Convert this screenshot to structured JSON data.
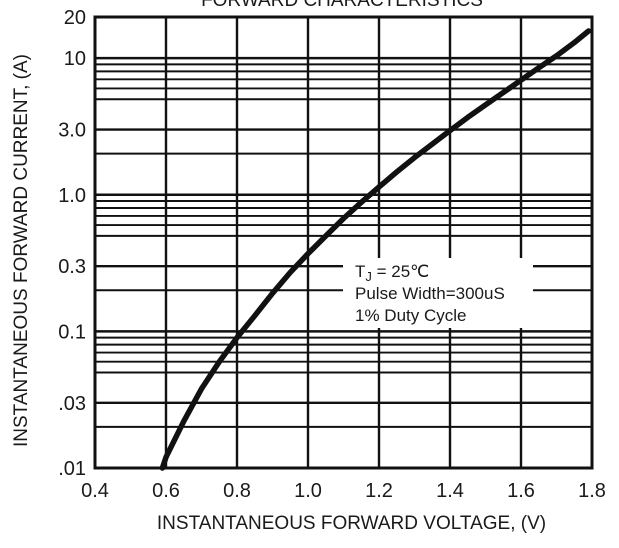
{
  "chart_data": {
    "type": "line",
    "title": "FORWARD CHARACTERISTICS",
    "xlabel": "INSTANTANEOUS FORWARD VOLTAGE, (V)",
    "ylabel": "INSTANTANEOUS FORWARD CURRENT, (A)",
    "xlim": [
      0.4,
      1.8
    ],
    "ylim": [
      0.01,
      20
    ],
    "yscale": "log",
    "grid": true,
    "x_ticks": [
      0.4,
      0.6,
      0.8,
      1.0,
      1.2,
      1.4,
      1.6,
      1.8
    ],
    "x_tick_labels": [
      "0.4",
      "0.6",
      "0.8",
      "1.0",
      "1.2",
      "1.4",
      "1.6",
      "1.8"
    ],
    "y_ticks": [
      0.01,
      0.03,
      0.1,
      0.3,
      1.0,
      3.0,
      10,
      20
    ],
    "y_tick_labels": [
      ".01",
      ".03",
      "0.1",
      "0.3",
      "1.0",
      "3.0",
      "10",
      "20"
    ],
    "y_minor_gridlines": [
      0.02,
      0.05,
      0.06,
      0.07,
      0.08,
      0.09,
      0.2,
      0.5,
      0.6,
      0.7,
      0.8,
      0.9,
      2,
      5,
      6,
      7,
      8,
      9
    ],
    "series": [
      {
        "x": [
          0.59,
          0.6,
          0.65,
          0.7,
          0.75,
          0.8,
          0.85,
          0.9,
          0.95,
          1.0,
          1.05,
          1.1,
          1.15,
          1.2,
          1.25,
          1.3,
          1.35,
          1.4,
          1.45,
          1.5,
          1.55,
          1.6,
          1.65,
          1.7,
          1.75,
          1.79
        ],
        "y": [
          0.01,
          0.012,
          0.022,
          0.038,
          0.06,
          0.09,
          0.13,
          0.19,
          0.27,
          0.37,
          0.5,
          0.67,
          0.88,
          1.14,
          1.47,
          1.87,
          2.35,
          2.95,
          3.68,
          4.55,
          5.6,
          6.9,
          8.5,
          10.4,
          13.0,
          15.8
        ]
      }
    ],
    "annotations": [
      {
        "lines": [
          {
            "main": "T",
            "sub": "J",
            "rest": " = 25℃"
          },
          {
            "main": "Pulse Width=300uS"
          },
          {
            "main": "1% Duty Cycle"
          }
        ]
      }
    ]
  }
}
